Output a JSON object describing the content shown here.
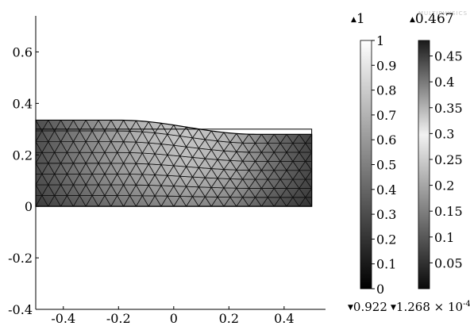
{
  "figure": {
    "x_ticks": [
      "-0.4",
      "-0.2",
      "0",
      "0.2",
      "0.4"
    ],
    "y_ticks": [
      "0.6",
      "0.4",
      "0.2",
      "0",
      "-0.2",
      "-0.4"
    ],
    "x_range": [
      -0.5,
      0.55
    ],
    "y_range": [
      -0.4,
      0.74
    ],
    "undeformed_domain": {
      "x": [
        -0.5,
        0.5
      ],
      "y": [
        0,
        0.3
      ]
    }
  },
  "colorbar_1": {
    "top_marker": "1",
    "ticks": [
      "1",
      "0.9",
      "0.8",
      "0.7",
      "0.6",
      "0.5",
      "0.4",
      "0.3",
      "0.2",
      "0.1",
      "0"
    ],
    "min_label": "0.922",
    "scale": "grayscale-dark-to-light"
  },
  "colorbar_2": {
    "top_marker": "0.467",
    "ticks": [
      "0.45",
      "0.4",
      "0.35",
      "0.3",
      "0.25",
      "0.2",
      "0.15",
      "0.1",
      "0.05"
    ],
    "min_label_mantissa": "1.268",
    "min_label_exponent": "-4",
    "scale": "grayscale-dark-light-dark"
  },
  "watermark": "MULTIPHYSICS"
}
